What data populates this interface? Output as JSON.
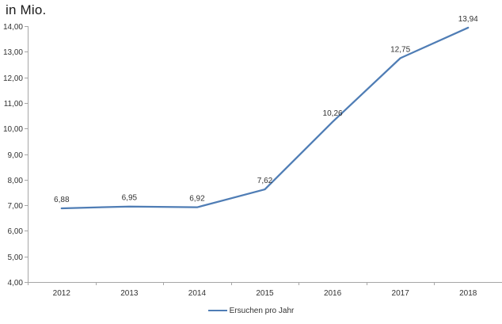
{
  "chart_data": {
    "type": "line",
    "title": "in Mio.",
    "categories": [
      "2012",
      "2013",
      "2014",
      "2015",
      "2016",
      "2017",
      "2018"
    ],
    "series": [
      {
        "name": "Ersuchen pro Jahr",
        "values": [
          6.88,
          6.95,
          6.92,
          7.62,
          10.26,
          12.75,
          13.94
        ],
        "value_labels": [
          "6,88",
          "6,95",
          "6,92",
          "7,62",
          "10,26",
          "12,75",
          "13,94"
        ],
        "color": "#4f7db5"
      }
    ],
    "xlabel": "",
    "ylabel": "",
    "ylim": [
      4,
      14
    ],
    "y_ticks": [
      {
        "value": 4,
        "label": "4,00"
      },
      {
        "value": 5,
        "label": "5,00"
      },
      {
        "value": 6,
        "label": "6,00"
      },
      {
        "value": 7,
        "label": "7,00"
      },
      {
        "value": 8,
        "label": "8,00"
      },
      {
        "value": 9,
        "label": "9,00"
      },
      {
        "value": 10,
        "label": "10,00"
      },
      {
        "value": 11,
        "label": "11,00"
      },
      {
        "value": 12,
        "label": "12,00"
      },
      {
        "value": 13,
        "label": "13,00"
      },
      {
        "value": 14,
        "label": "14,00"
      }
    ],
    "grid": false,
    "legend_position": "bottom",
    "colors": {
      "axis": "#a6a6a6",
      "text": "#333333",
      "title": "#1a1a1a",
      "background": "#ffffff"
    }
  }
}
